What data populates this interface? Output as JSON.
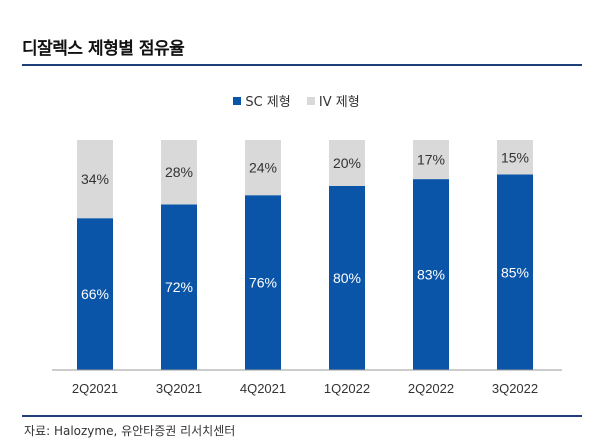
{
  "title": "디잘렉스 제형별 점유율",
  "source": "자료: Halozyme, 유안타증권 리서치센터",
  "colors": {
    "sc": "#0a55a8",
    "iv": "#d9d9d9",
    "rule": "#1f3f7a"
  },
  "chart_data": {
    "type": "bar",
    "stacked": true,
    "categories": [
      "2Q2021",
      "3Q2021",
      "4Q2021",
      "1Q2022",
      "2Q2022",
      "3Q2022"
    ],
    "series": [
      {
        "name": "SC 제형",
        "values": [
          66,
          72,
          76,
          80,
          83,
          85
        ],
        "labels": [
          "66%",
          "72%",
          "76%",
          "80%",
          "83%",
          "85%"
        ]
      },
      {
        "name": "IV 제형",
        "values": [
          34,
          28,
          24,
          20,
          17,
          15
        ],
        "labels": [
          "34%",
          "28%",
          "24%",
          "20%",
          "17%",
          "15%"
        ]
      }
    ],
    "ylim": [
      0,
      100
    ],
    "grid": false,
    "legend": "top-center"
  }
}
